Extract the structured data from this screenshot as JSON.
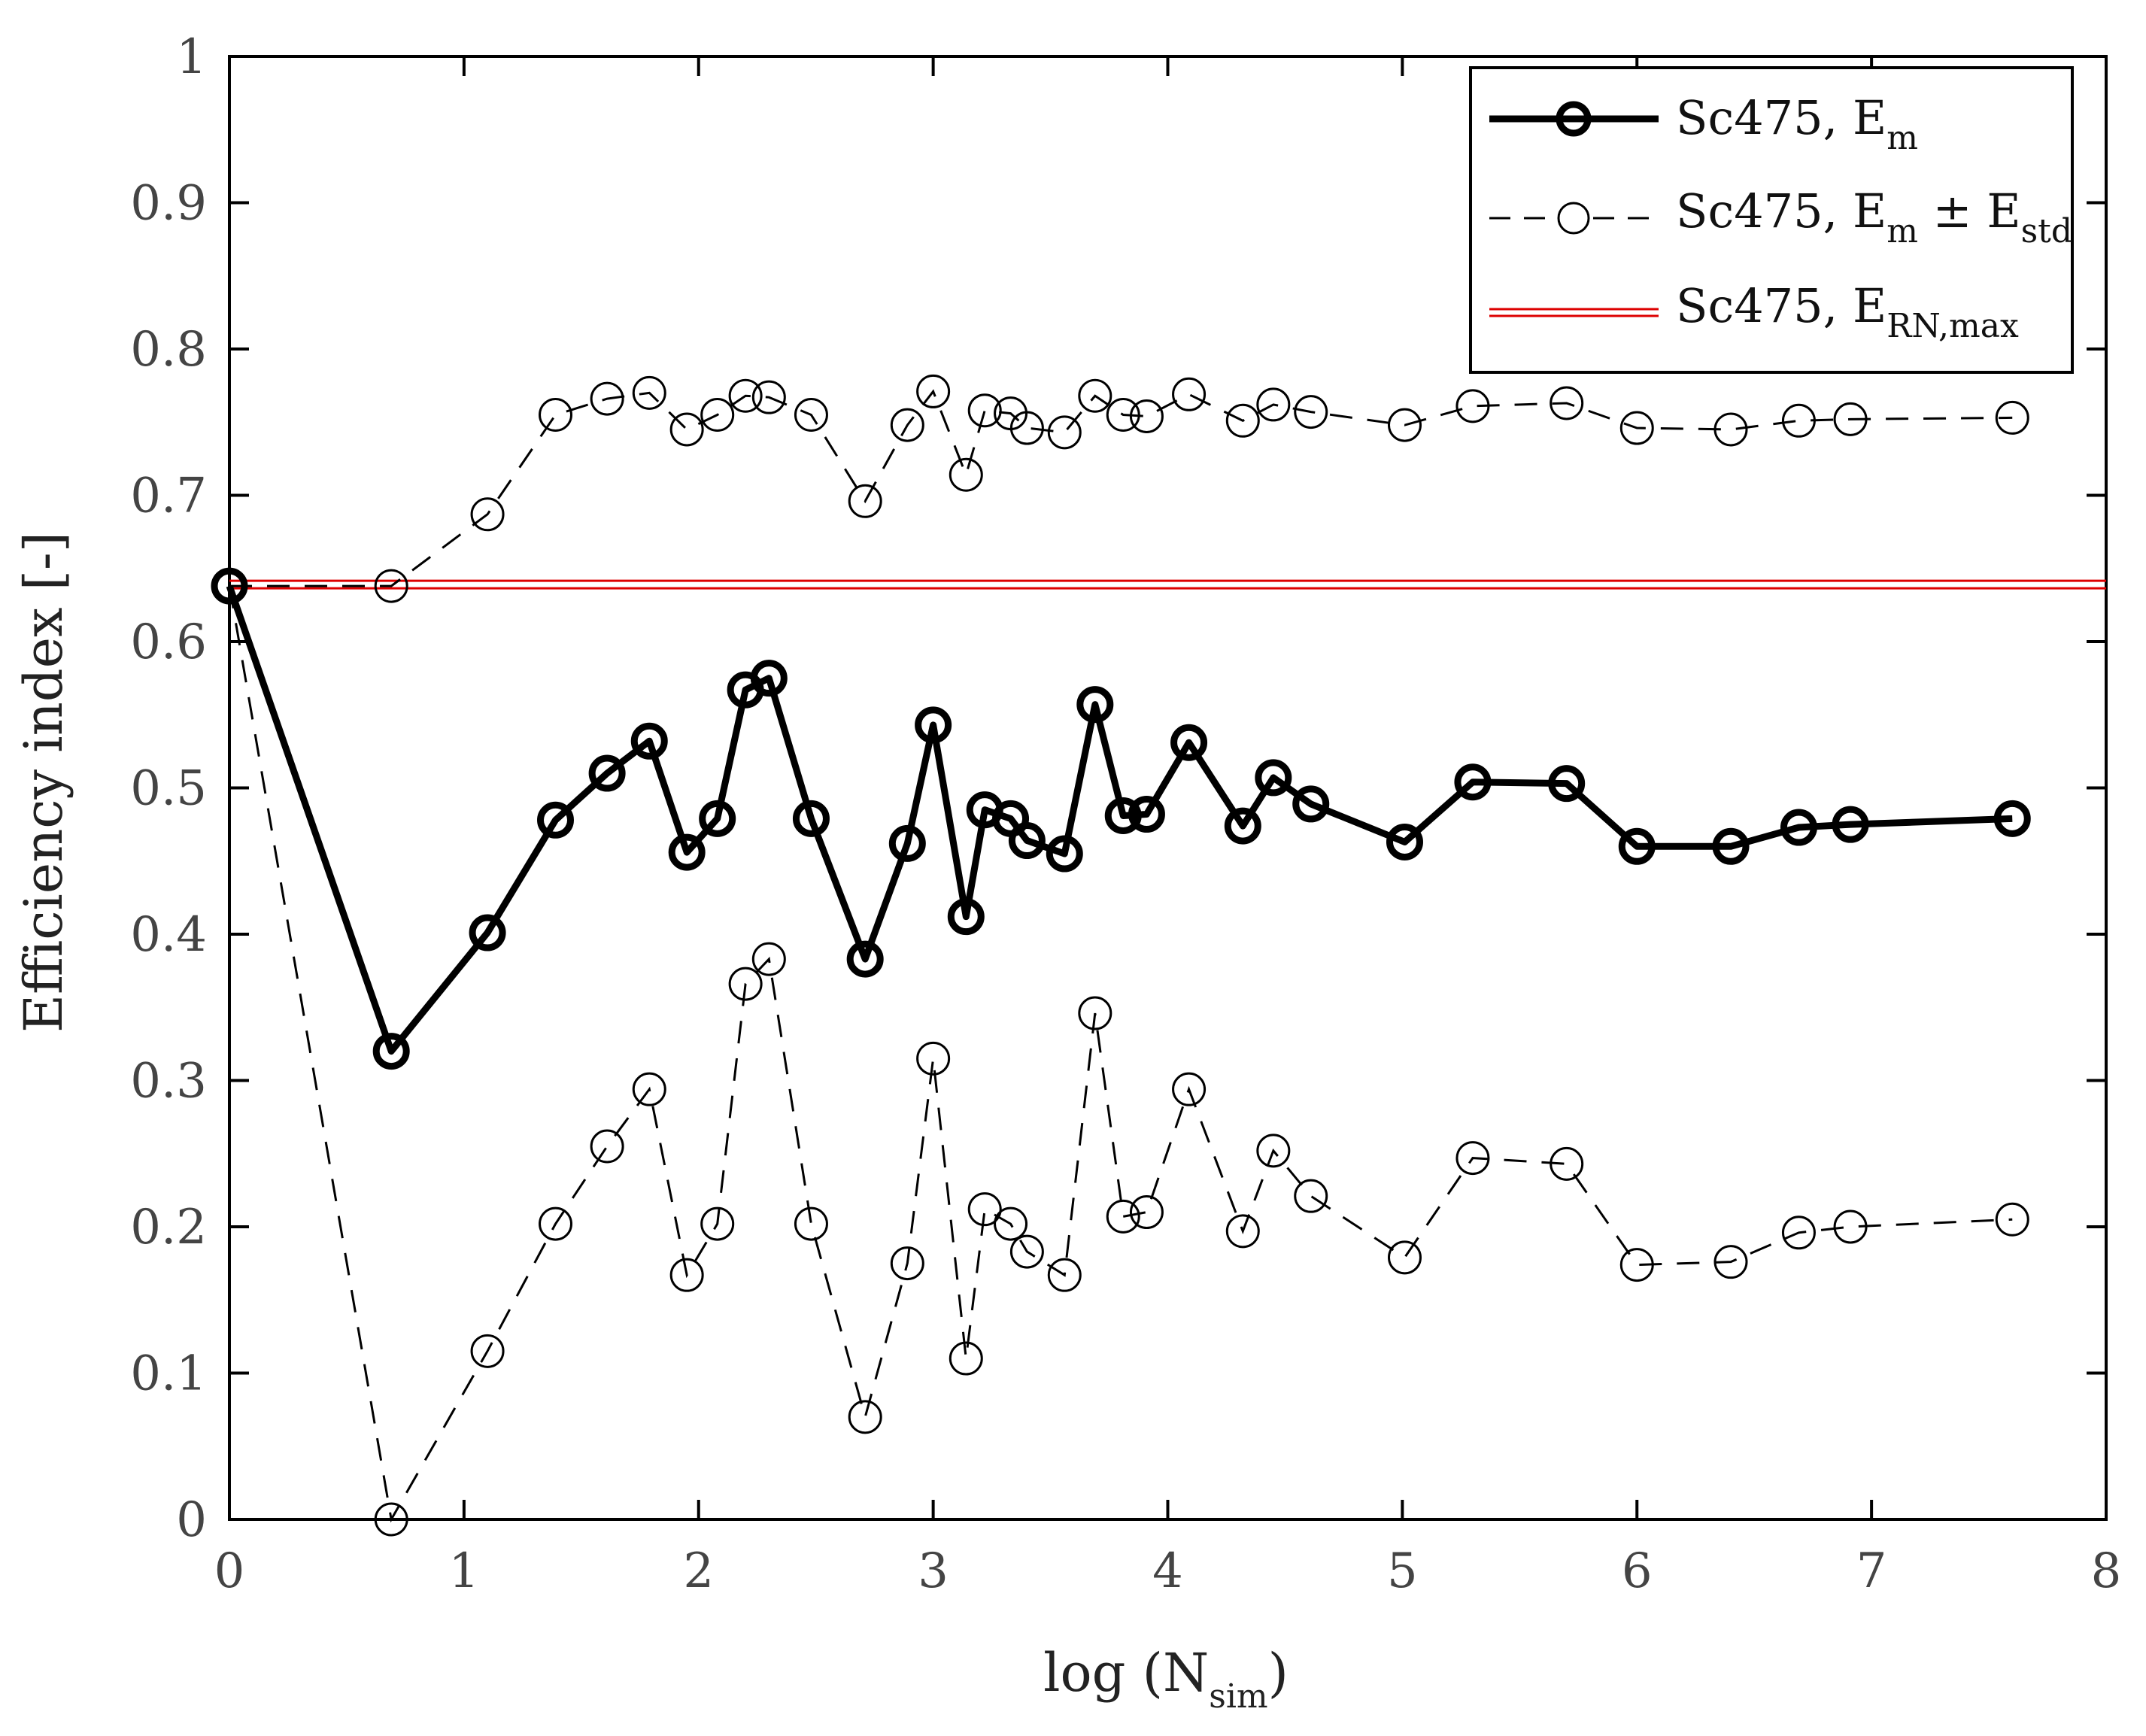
{
  "chart_data": {
    "type": "line",
    "title": "",
    "xlabel": {
      "main": "log (N",
      "sub": "sim",
      "close": ")"
    },
    "ylabel": "Efficiency index [-]",
    "xlim": [
      0,
      8
    ],
    "ylim": [
      0,
      1
    ],
    "xticks": [
      0,
      1,
      2,
      3,
      4,
      5,
      6,
      7,
      8
    ],
    "yticks": [
      0,
      0.1,
      0.2,
      0.3,
      0.4,
      0.5,
      0.6,
      0.7,
      0.8,
      0.9,
      1
    ],
    "ytick_labels": [
      "0",
      "0.1",
      "0.2",
      "0.3",
      "0.4",
      "0.5",
      "0.6",
      "0.7",
      "0.8",
      "0.9",
      "1"
    ],
    "x": [
      0,
      0.69,
      1.1,
      1.39,
      1.61,
      1.79,
      1.95,
      2.08,
      2.2,
      2.3,
      2.48,
      2.71,
      2.89,
      3.0,
      3.14,
      3.22,
      3.33,
      3.4,
      3.56,
      3.69,
      3.81,
      3.91,
      4.09,
      4.32,
      4.45,
      4.61,
      5.01,
      5.3,
      5.7,
      6.0,
      6.4,
      6.69,
      6.91,
      7.6
    ],
    "series": [
      {
        "name": "Sc475, E_m",
        "style": "solid-bold",
        "color": "#000000",
        "values": [
          0.638,
          0.32,
          0.401,
          0.478,
          0.51,
          0.532,
          0.456,
          0.479,
          0.567,
          0.575,
          0.479,
          0.383,
          0.462,
          0.543,
          0.412,
          0.485,
          0.479,
          0.464,
          0.455,
          0.557,
          0.481,
          0.482,
          0.531,
          0.474,
          0.507,
          0.489,
          0.463,
          0.504,
          0.503,
          0.46,
          0.46,
          0.473,
          0.475,
          0.479
        ]
      },
      {
        "name": "Sc475, E_m + E_std",
        "style": "dashed",
        "color": "#000000",
        "values": [
          0.638,
          0.638,
          0.687,
          0.755,
          0.766,
          0.77,
          0.745,
          0.755,
          0.768,
          0.767,
          0.755,
          0.696,
          0.748,
          0.771,
          0.714,
          0.758,
          0.756,
          0.746,
          0.743,
          0.768,
          0.755,
          0.754,
          0.769,
          0.751,
          0.762,
          0.757,
          0.748,
          0.761,
          0.763,
          0.746,
          0.745,
          0.751,
          0.752,
          0.753
        ]
      },
      {
        "name": "Sc475, E_m - E_std",
        "style": "dashed",
        "color": "#000000",
        "values": [
          0.638,
          0.0,
          0.115,
          0.202,
          0.255,
          0.294,
          0.167,
          0.202,
          0.366,
          0.383,
          0.202,
          0.07,
          0.175,
          0.315,
          0.11,
          0.212,
          0.202,
          0.183,
          0.167,
          0.346,
          0.207,
          0.21,
          0.294,
          0.197,
          0.252,
          0.221,
          0.179,
          0.247,
          0.243,
          0.174,
          0.176,
          0.196,
          0.2,
          0.205
        ]
      },
      {
        "name": "Sc475, E_RN,max",
        "style": "double-red",
        "color": "#dd0000",
        "constant": 0.639
      }
    ],
    "legend": {
      "placement": "top-right",
      "entries": [
        {
          "base": "Sc475, E",
          "sub": "m",
          "rest": "",
          "sub2": ""
        },
        {
          "base": "Sc475, E",
          "sub": "m",
          "rest": " ± E",
          "sub2": "std"
        },
        {
          "base": "Sc475, E",
          "sub": "RN,max",
          "rest": "",
          "sub2": ""
        }
      ]
    },
    "grid": false
  }
}
